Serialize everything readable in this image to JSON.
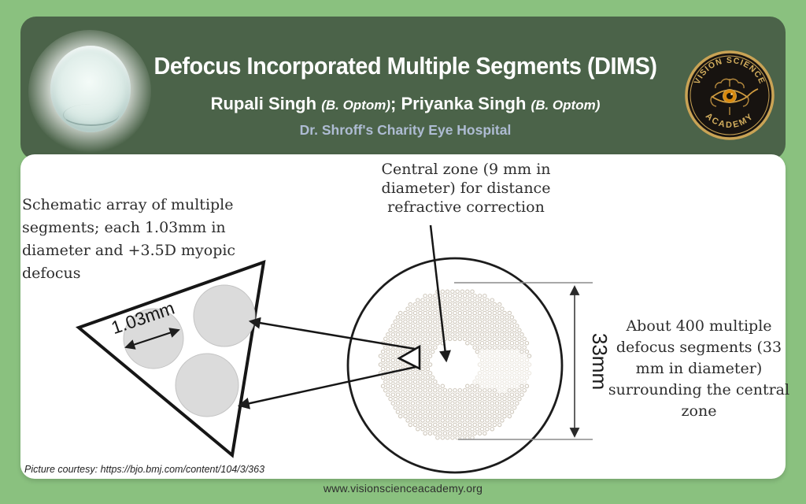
{
  "colors": {
    "page_bg": "#8ac17f",
    "header_bg": "#4b6349",
    "affiliation_text": "#aebcd3",
    "logo_gold": "#c9a355",
    "diagram_line": "#1c1c1c",
    "segment_fill": "#dbdbdb",
    "dot_ring": "#cfc8bc"
  },
  "header": {
    "title": "Defocus Incorporated Multiple Segments (DIMS)",
    "author1_name": "Rupali Singh",
    "author1_cred": "(B. Optom)",
    "separator": ";",
    "author2_name": "Priyanka Singh",
    "author2_cred": "(B. Optom)",
    "affiliation": "Dr. Shroff's Charity Eye Hospital",
    "logo": {
      "arc_top": "VISION SCIENCE",
      "arc_bottom": "ACADEMY"
    }
  },
  "diagram": {
    "left_note_lines": [
      "Schematic array of multiple",
      "segments; each 1.03mm in",
      "diameter and +3.5D myopic",
      "defocus"
    ],
    "top_note_lines": [
      "Central zone (9 mm in",
      "diameter) for distance",
      "refractive correction"
    ],
    "right_note_lines": [
      "About 400 multiple",
      "defocus segments (33",
      "mm in diameter)",
      "surrounding the central",
      "zone"
    ],
    "segment_size_label": "1.03mm",
    "lens_diameter_label": "33mm"
  },
  "footer": {
    "courtesy": "Picture courtesy: https://bjo.bmj.com/content/104/3/363",
    "website": "www.visionscienceacademy.org"
  }
}
